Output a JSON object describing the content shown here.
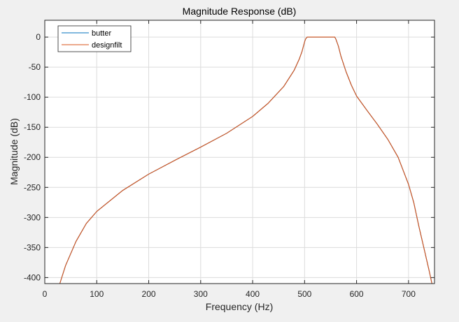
{
  "chart_data": {
    "type": "line",
    "title": "Magnitude Response (dB)",
    "xlabel": "Frequency (Hz)",
    "ylabel": "Magnitude (dB)",
    "xlim": [
      0,
      750
    ],
    "ylim": [
      -410,
      28
    ],
    "x_ticks": [
      0,
      100,
      200,
      300,
      400,
      500,
      600,
      700
    ],
    "y_ticks": [
      0,
      -50,
      -100,
      -150,
      -200,
      -250,
      -300,
      -350,
      -400
    ],
    "x_tick_labels": [
      "0",
      "100",
      "200",
      "300",
      "400",
      "500",
      "600",
      "700"
    ],
    "y_tick_labels": [
      "0",
      "-50",
      "-100",
      "-150",
      "-200",
      "-250",
      "-300",
      "-350",
      "-400"
    ],
    "grid": true,
    "legend_position": "top-left",
    "colors": {
      "axes_bg": "#ffffff",
      "figure_bg": "#f0f0f0",
      "grid": "#dcdcdc",
      "axis": "#262626"
    },
    "series": [
      {
        "name": "butter",
        "color": "#0072bd",
        "x": [
          29,
          40,
          60,
          80,
          100,
          150,
          200,
          250,
          300,
          350,
          400,
          430,
          460,
          480,
          490,
          495,
          500,
          502,
          505,
          510,
          520,
          530,
          540,
          550,
          555,
          558,
          560,
          565,
          570,
          580,
          590,
          600,
          620,
          640,
          660,
          680,
          700,
          710,
          720,
          730,
          740,
          745
        ],
        "y": [
          -410,
          -380,
          -340,
          -310,
          -290,
          -255,
          -228,
          -205,
          -183,
          -160,
          -132,
          -110,
          -82,
          -55,
          -36,
          -24,
          -8,
          -3,
          0,
          0,
          0,
          0,
          0,
          0,
          0,
          0,
          -3,
          -15,
          -32,
          -58,
          -80,
          -98,
          -122,
          -145,
          -170,
          -200,
          -245,
          -275,
          -315,
          -352,
          -390,
          -410
        ]
      },
      {
        "name": "designfilt",
        "color": "#d95319",
        "x": [
          29,
          40,
          60,
          80,
          100,
          150,
          200,
          250,
          300,
          350,
          400,
          430,
          460,
          480,
          490,
          495,
          500,
          502,
          505,
          510,
          520,
          530,
          540,
          550,
          555,
          558,
          560,
          565,
          570,
          580,
          590,
          600,
          620,
          640,
          660,
          680,
          700,
          710,
          720,
          730,
          740,
          745
        ],
        "y": [
          -410,
          -380,
          -340,
          -310,
          -290,
          -255,
          -228,
          -205,
          -183,
          -160,
          -132,
          -110,
          -82,
          -55,
          -36,
          -24,
          -8,
          -3,
          0,
          0,
          0,
          0,
          0,
          0,
          0,
          0,
          -3,
          -15,
          -32,
          -58,
          -80,
          -98,
          -122,
          -145,
          -170,
          -200,
          -245,
          -275,
          -315,
          -352,
          -390,
          -410
        ]
      }
    ]
  }
}
